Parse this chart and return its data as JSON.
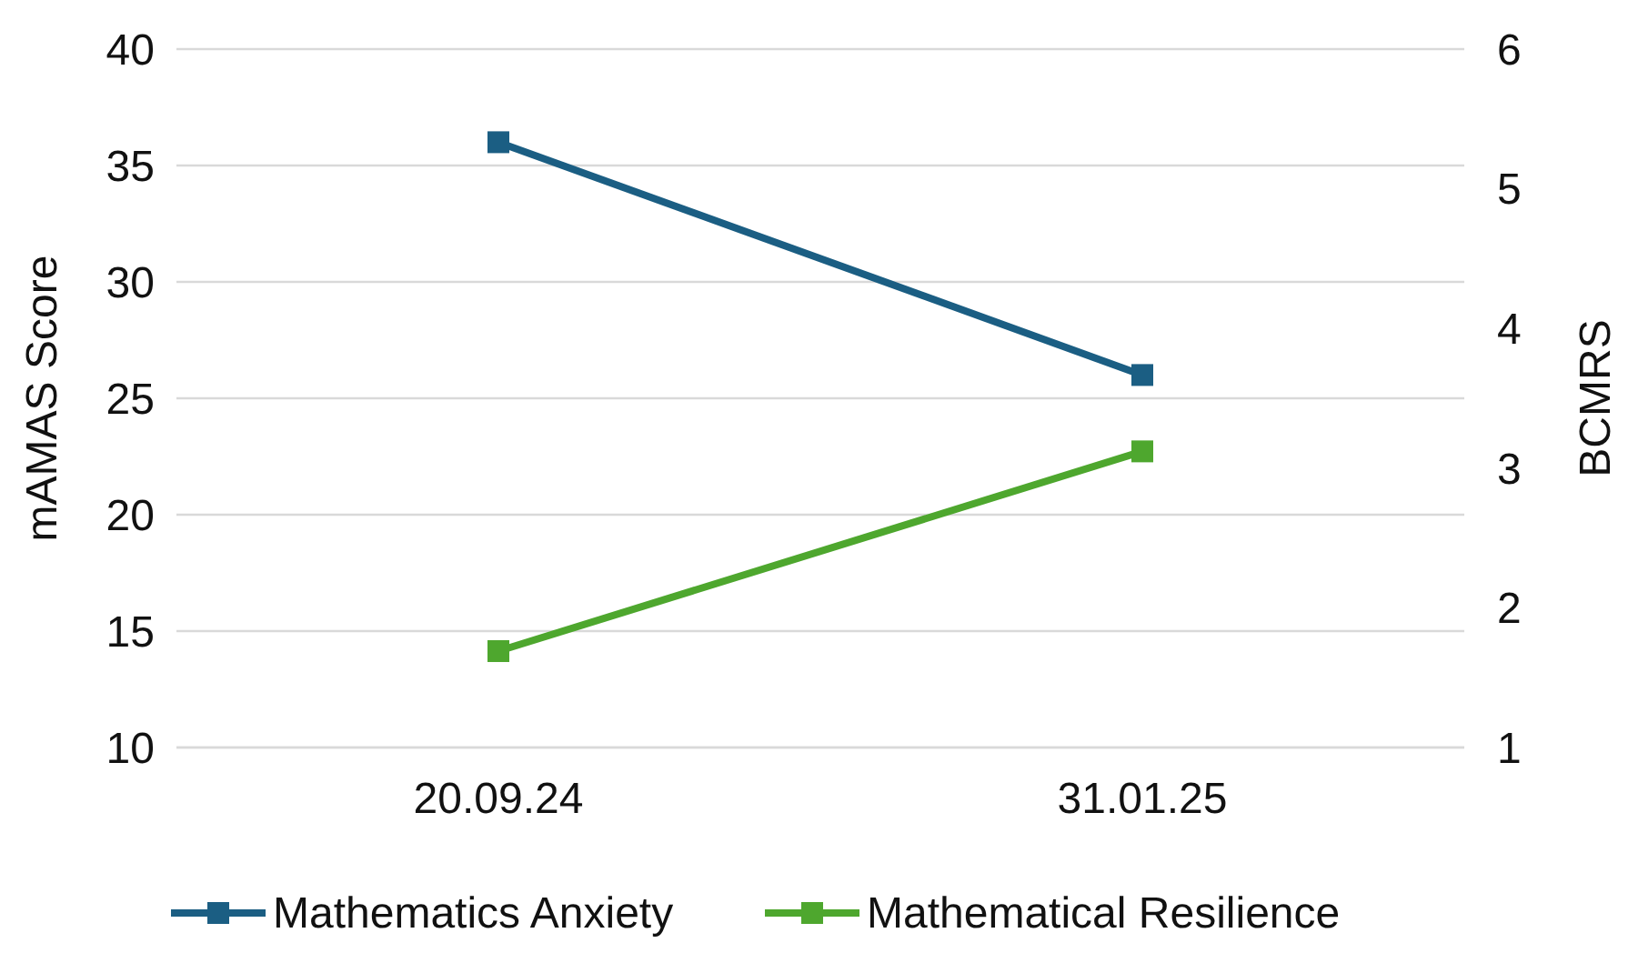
{
  "chart_data": {
    "type": "line",
    "xlabel": null,
    "ylabel": "mAMAS Score",
    "y2label": "BCMRS",
    "categories": [
      "20.09.24",
      "31.01.25"
    ],
    "series": [
      {
        "name": "Mathematics Anxiety",
        "color": "#1b5e83",
        "values": [
          36,
          26
        ]
      },
      {
        "name": "Mathematical Resilience",
        "color": "#4ea72e",
        "values": [
          1.69,
          3.12
        ],
        "axis": "y2"
      }
    ],
    "ylim": [
      10,
      40
    ],
    "yticks": [
      10,
      15,
      20,
      25,
      30,
      35,
      40
    ],
    "y2lim": [
      1,
      6
    ],
    "y2ticks": [
      1,
      2,
      3,
      4,
      5,
      6
    ],
    "grid": "y",
    "legend": "bottom",
    "marker": "square",
    "line_style": "solid"
  }
}
